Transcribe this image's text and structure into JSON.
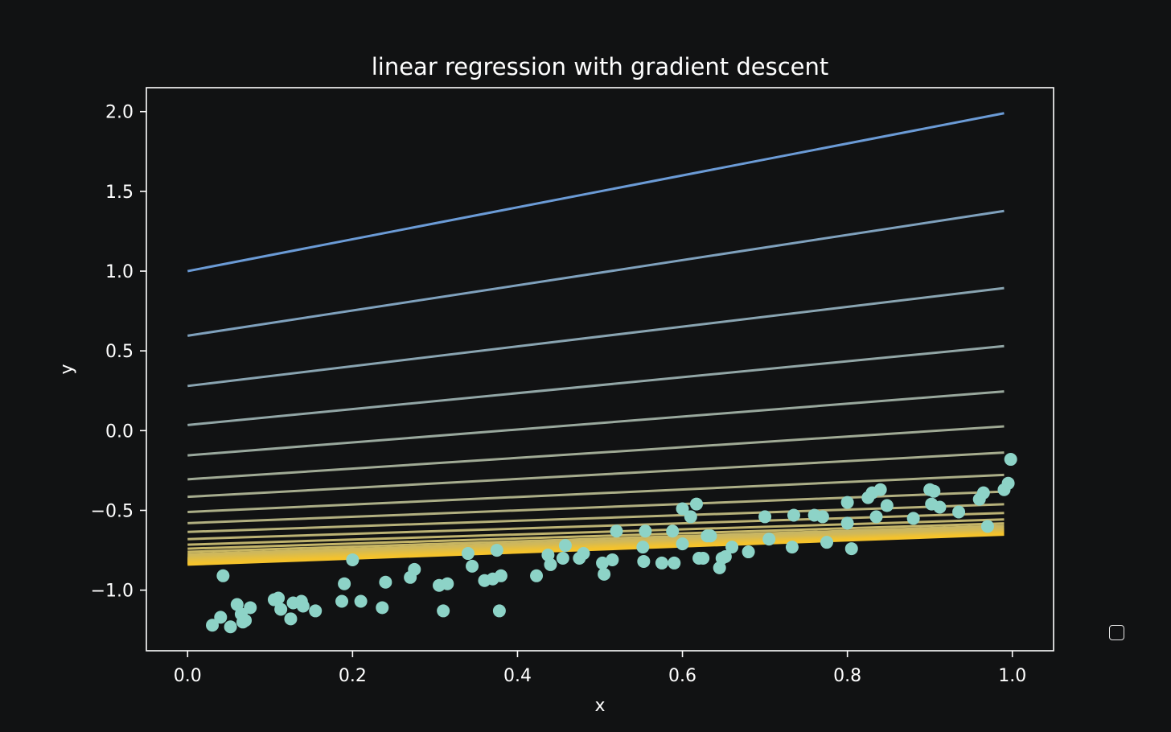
{
  "chart_data": {
    "type": "scatter",
    "title": "linear regression with gradient descent",
    "xlabel": "x",
    "ylabel": "y",
    "xlim": [
      -0.05,
      1.05
    ],
    "ylim": [
      -1.38,
      2.15
    ],
    "xticks": [
      0.0,
      0.2,
      0.4,
      0.6,
      0.8,
      1.0
    ],
    "xtick_labels": [
      "0.0",
      "0.2",
      "0.4",
      "0.6",
      "0.8",
      "1.0"
    ],
    "yticks": [
      -1.0,
      -0.5,
      0.0,
      0.5,
      1.0,
      1.5,
      2.0
    ],
    "ytick_labels": [
      "−1.0",
      "−0.5",
      "0.0",
      "0.5",
      "1.0",
      "1.5",
      "2.0"
    ],
    "grid": false,
    "legend": "right, empty",
    "colors": {
      "background": "#111213",
      "axes": "#ffffff",
      "points": "#8dd3c7",
      "line_start": "#6b9bd6",
      "line_end": "#f5c32c"
    },
    "scatter": {
      "x": [
        0.03,
        0.04,
        0.043,
        0.052,
        0.06,
        0.065,
        0.067,
        0.07,
        0.076,
        0.105,
        0.11,
        0.113,
        0.125,
        0.128,
        0.138,
        0.14,
        0.155,
        0.187,
        0.19,
        0.2,
        0.21,
        0.236,
        0.24,
        0.27,
        0.275,
        0.305,
        0.31,
        0.315,
        0.34,
        0.345,
        0.36,
        0.37,
        0.375,
        0.378,
        0.38,
        0.423,
        0.437,
        0.44,
        0.455,
        0.458,
        0.475,
        0.48,
        0.503,
        0.505,
        0.515,
        0.52,
        0.552,
        0.553,
        0.555,
        0.575,
        0.588,
        0.59,
        0.6,
        0.6,
        0.61,
        0.617,
        0.62,
        0.625,
        0.63,
        0.634,
        0.645,
        0.648,
        0.652,
        0.66,
        0.68,
        0.7,
        0.705,
        0.733,
        0.735,
        0.76,
        0.77,
        0.775,
        0.8,
        0.8,
        0.805,
        0.825,
        0.83,
        0.835,
        0.84,
        0.848,
        0.88,
        0.9,
        0.902,
        0.905,
        0.912,
        0.935,
        0.96,
        0.965,
        0.97,
        0.99,
        0.995,
        0.998
      ],
      "y": [
        -1.22,
        -1.17,
        -0.91,
        -1.23,
        -1.09,
        -1.15,
        -1.2,
        -1.19,
        -1.11,
        -1.06,
        -1.05,
        -1.12,
        -1.18,
        -1.08,
        -1.07,
        -1.1,
        -1.13,
        -1.07,
        -0.96,
        -0.81,
        -1.07,
        -1.11,
        -0.95,
        -0.92,
        -0.87,
        -0.97,
        -1.13,
        -0.96,
        -0.77,
        -0.85,
        -0.94,
        -0.93,
        -0.75,
        -1.13,
        -0.91,
        -0.91,
        -0.78,
        -0.84,
        -0.8,
        -0.72,
        -0.8,
        -0.77,
        -0.83,
        -0.9,
        -0.81,
        -0.63,
        -0.73,
        -0.82,
        -0.63,
        -0.83,
        -0.63,
        -0.83,
        -0.71,
        -0.49,
        -0.54,
        -0.46,
        -0.8,
        -0.8,
        -0.66,
        -0.66,
        -0.86,
        -0.8,
        -0.79,
        -0.73,
        -0.76,
        -0.54,
        -0.68,
        -0.73,
        -0.53,
        -0.53,
        -0.54,
        -0.7,
        -0.45,
        -0.58,
        -0.74,
        -0.42,
        -0.39,
        -0.54,
        -0.37,
        -0.47,
        -0.55,
        -0.37,
        -0.46,
        -0.38,
        -0.48,
        -0.51,
        -0.43,
        -0.39,
        -0.6,
        -0.37,
        -0.33,
        -0.18
      ]
    },
    "lines": {
      "x_range": [
        0.0,
        0.99
      ],
      "intercepts": [
        1.0,
        0.595,
        0.28,
        0.035,
        -0.155,
        -0.305,
        -0.415,
        -0.51,
        -0.58,
        -0.635,
        -0.68,
        -0.715,
        -0.74,
        -0.76,
        -0.775,
        -0.785,
        -0.795,
        -0.8,
        -0.805,
        -0.81,
        -0.815,
        -0.82,
        -0.825,
        -0.83,
        -0.835,
        -0.84
      ],
      "slopes": [
        1.0,
        0.79,
        0.62,
        0.5,
        0.405,
        0.335,
        0.28,
        0.235,
        0.2,
        0.175,
        0.165,
        0.16,
        0.16,
        0.165,
        0.168,
        0.17,
        0.172,
        0.174,
        0.176,
        0.178,
        0.18,
        0.182,
        0.184,
        0.186,
        0.188,
        0.19
      ]
    }
  }
}
